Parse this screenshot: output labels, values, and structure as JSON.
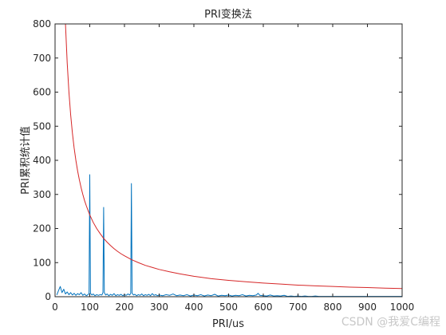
{
  "chart_data": {
    "type": "line",
    "title": "PRI变换法",
    "xlabel": "PRI/us",
    "ylabel": "PRI累积统计值",
    "xlim": [
      0,
      1000
    ],
    "ylim": [
      0,
      800
    ],
    "x_ticks": [
      0,
      100,
      200,
      300,
      400,
      500,
      600,
      700,
      800,
      900,
      1000
    ],
    "y_ticks": [
      0,
      100,
      200,
      300,
      400,
      500,
      600,
      700,
      800
    ],
    "grid": false,
    "box": true,
    "series": [
      {
        "color": "#0072BD",
        "points": [
          [
            5,
            5
          ],
          [
            10,
            18
          ],
          [
            15,
            30
          ],
          [
            20,
            12
          ],
          [
            25,
            22
          ],
          [
            30,
            8
          ],
          [
            35,
            14
          ],
          [
            40,
            6
          ],
          [
            45,
            12
          ],
          [
            50,
            5
          ],
          [
            55,
            10
          ],
          [
            60,
            4
          ],
          [
            65,
            9
          ],
          [
            70,
            6
          ],
          [
            75,
            12
          ],
          [
            80,
            4
          ],
          [
            85,
            8
          ],
          [
            90,
            3
          ],
          [
            95,
            6
          ],
          [
            98,
            10
          ],
          [
            100,
            358
          ],
          [
            102,
            10
          ],
          [
            106,
            5
          ],
          [
            110,
            8
          ],
          [
            115,
            3
          ],
          [
            120,
            6
          ],
          [
            125,
            4
          ],
          [
            130,
            6
          ],
          [
            135,
            5
          ],
          [
            138,
            12
          ],
          [
            140,
            262
          ],
          [
            142,
            12
          ],
          [
            146,
            5
          ],
          [
            150,
            8
          ],
          [
            155,
            3
          ],
          [
            160,
            7
          ],
          [
            165,
            4
          ],
          [
            170,
            9
          ],
          [
            175,
            3
          ],
          [
            180,
            6
          ],
          [
            185,
            4
          ],
          [
            190,
            7
          ],
          [
            195,
            3
          ],
          [
            200,
            6
          ],
          [
            205,
            4
          ],
          [
            210,
            8
          ],
          [
            215,
            5
          ],
          [
            218,
            10
          ],
          [
            220,
            332
          ],
          [
            222,
            10
          ],
          [
            226,
            5
          ],
          [
            230,
            7
          ],
          [
            235,
            3
          ],
          [
            240,
            6
          ],
          [
            245,
            4
          ],
          [
            250,
            8
          ],
          [
            255,
            3
          ],
          [
            260,
            6
          ],
          [
            265,
            4
          ],
          [
            270,
            7
          ],
          [
            275,
            3
          ],
          [
            280,
            9
          ],
          [
            285,
            4
          ],
          [
            290,
            6
          ],
          [
            295,
            3
          ],
          [
            300,
            5
          ],
          [
            310,
            3
          ],
          [
            320,
            6
          ],
          [
            330,
            4
          ],
          [
            340,
            8
          ],
          [
            350,
            3
          ],
          [
            360,
            5
          ],
          [
            370,
            3
          ],
          [
            380,
            6
          ],
          [
            390,
            2
          ],
          [
            400,
            5
          ],
          [
            410,
            3
          ],
          [
            420,
            6
          ],
          [
            430,
            2
          ],
          [
            440,
            5
          ],
          [
            450,
            3
          ],
          [
            460,
            7
          ],
          [
            470,
            2
          ],
          [
            480,
            4
          ],
          [
            490,
            3
          ],
          [
            500,
            5
          ],
          [
            510,
            2
          ],
          [
            520,
            4
          ],
          [
            530,
            3
          ],
          [
            540,
            6
          ],
          [
            550,
            2
          ],
          [
            560,
            4
          ],
          [
            570,
            3
          ],
          [
            580,
            5
          ],
          [
            585,
            10
          ],
          [
            590,
            4
          ],
          [
            600,
            3
          ],
          [
            610,
            2
          ],
          [
            620,
            5
          ],
          [
            630,
            2
          ],
          [
            640,
            3
          ],
          [
            650,
            2
          ],
          [
            660,
            4
          ],
          [
            670,
            1
          ],
          [
            680,
            2
          ],
          [
            690,
            1
          ],
          [
            700,
            2
          ],
          [
            710,
            1
          ],
          [
            720,
            2
          ],
          [
            730,
            1
          ],
          [
            740,
            1
          ],
          [
            750,
            2
          ],
          [
            760,
            1
          ],
          [
            780,
            1
          ],
          [
            800,
            1
          ],
          [
            820,
            1
          ],
          [
            840,
            1
          ],
          [
            860,
            1
          ],
          [
            880,
            1
          ],
          [
            900,
            1
          ],
          [
            920,
            1
          ],
          [
            940,
            1
          ],
          [
            960,
            1
          ],
          [
            980,
            1
          ],
          [
            1000,
            1
          ]
        ]
      },
      {
        "color": "#D62728",
        "points": [
          [
            30,
            800
          ],
          [
            35,
            686
          ],
          [
            40,
            600
          ],
          [
            45,
            533
          ],
          [
            50,
            480
          ],
          [
            55,
            436
          ],
          [
            60,
            400
          ],
          [
            65,
            369
          ],
          [
            70,
            343
          ],
          [
            75,
            320
          ],
          [
            80,
            300
          ],
          [
            85,
            282
          ],
          [
            90,
            267
          ],
          [
            95,
            253
          ],
          [
            100,
            240
          ],
          [
            110,
            218
          ],
          [
            120,
            200
          ],
          [
            130,
            185
          ],
          [
            140,
            171
          ],
          [
            150,
            160
          ],
          [
            160,
            150
          ],
          [
            170,
            141
          ],
          [
            180,
            133
          ],
          [
            190,
            126
          ],
          [
            200,
            120
          ],
          [
            220,
            109
          ],
          [
            240,
            100
          ],
          [
            260,
            92
          ],
          [
            280,
            86
          ],
          [
            300,
            80
          ],
          [
            330,
            73
          ],
          [
            360,
            67
          ],
          [
            400,
            60
          ],
          [
            450,
            53
          ],
          [
            500,
            48
          ],
          [
            550,
            44
          ],
          [
            600,
            40
          ],
          [
            650,
            37
          ],
          [
            700,
            34
          ],
          [
            750,
            32
          ],
          [
            800,
            30
          ],
          [
            850,
            28
          ],
          [
            900,
            27
          ],
          [
            950,
            25
          ],
          [
            1000,
            24
          ]
        ]
      }
    ]
  },
  "watermark": "CSDN @我爱C编程"
}
